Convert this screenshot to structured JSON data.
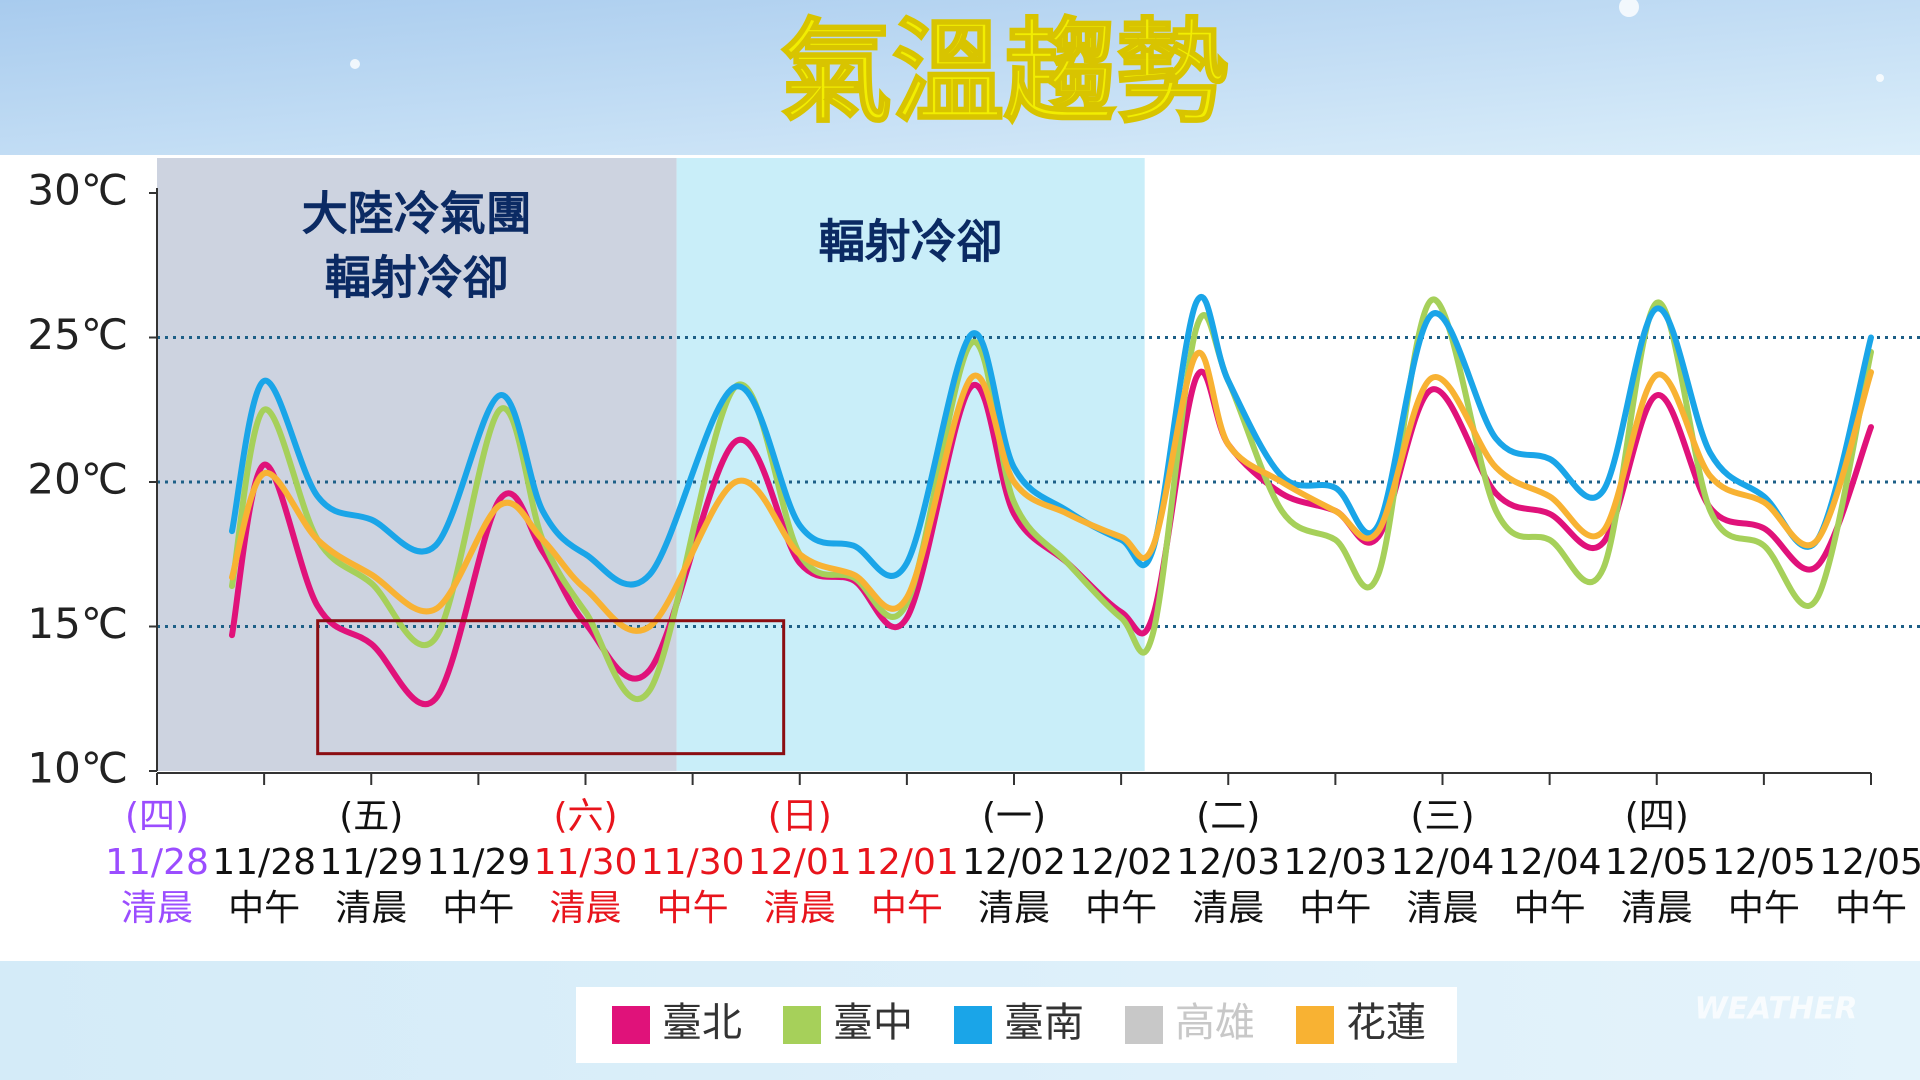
{
  "chart_data": {
    "type": "line",
    "title": "氣溫趨勢",
    "categories": [
      "11/28",
      "11/28",
      "11/29",
      "11/29",
      "11/30",
      "11/30",
      "12/01",
      "12/01",
      "12/02",
      "12/02",
      "12/03",
      "12/03",
      "12/04",
      "12/04",
      "12/05",
      "12/05",
      "12/05"
    ],
    "weekdays": [
      "(四)",
      null,
      "(五)",
      null,
      "(六)",
      null,
      "(日)",
      null,
      "(一)",
      null,
      "(二)",
      null,
      "(三)",
      null,
      "(四)",
      null,
      null
    ],
    "times": [
      "清晨",
      "中午",
      "清晨",
      "中午",
      "清晨",
      "中午",
      "清晨",
      "中午",
      "清晨",
      "中午",
      "清晨",
      "中午",
      "清晨",
      "中午",
      "清晨",
      "中午",
      "中午"
    ],
    "label_colors": [
      "#9b4dff",
      "#111111",
      "#111111",
      "#111111",
      "#e8141c",
      "#e8141c",
      "#e8141c",
      "#e8141c",
      "#111111",
      "#111111",
      "#111111",
      "#111111",
      "#111111",
      "#111111",
      "#111111",
      "#111111",
      "#111111"
    ],
    "xlim": [
      0,
      16
    ],
    "ylim": [
      10,
      30
    ],
    "yticks": [
      {
        "value": 10,
        "label": "10℃"
      },
      {
        "value": 15,
        "label": "15℃"
      },
      {
        "value": 20,
        "label": "20℃"
      },
      {
        "value": 25,
        "label": "25℃"
      },
      {
        "value": 30,
        "label": "30℃"
      }
    ],
    "grid": true,
    "x": [
      0.7,
      1,
      1.5,
      2,
      2.6,
      3.2,
      3.6,
      4,
      4.6,
      5.4,
      6,
      6.5,
      7,
      7.6,
      8,
      8.5,
      9,
      9.3,
      9.7,
      10,
      10.5,
      11,
      11.4,
      11.9,
      12.5,
      13,
      13.5,
      14,
      14.5,
      15,
      15.5,
      16
    ],
    "series": [
      {
        "name": "臺北",
        "color": "#e0127a",
        "values": [
          14.7,
          20.6,
          15.7,
          14.4,
          12.5,
          19.4,
          17.6,
          15.1,
          13.5,
          21.4,
          17.2,
          16.6,
          15.3,
          23.3,
          18.9,
          17.2,
          15.5,
          15.4,
          23.6,
          21.3,
          19.6,
          19.0,
          18.1,
          23.2,
          19.6,
          18.9,
          17.9,
          23.0,
          19.1,
          18.4,
          17.1,
          21.9
        ]
      },
      {
        "name": "臺中",
        "color": "#a6d05a",
        "values": [
          16.4,
          22.5,
          18.0,
          16.5,
          14.6,
          22.5,
          18.0,
          15.5,
          12.8,
          23.3,
          17.5,
          16.7,
          15.8,
          24.8,
          19.3,
          17.2,
          15.3,
          14.8,
          25.3,
          23.5,
          19.0,
          18.0,
          16.8,
          26.3,
          19.0,
          18.0,
          17.0,
          26.2,
          19.0,
          17.8,
          16.0,
          24.5
        ]
      },
      {
        "name": "臺南",
        "color": "#1aa5e8",
        "values": [
          18.3,
          23.5,
          19.5,
          18.7,
          17.8,
          23.0,
          19.0,
          17.5,
          16.8,
          23.3,
          18.5,
          17.8,
          17.2,
          25.1,
          20.5,
          19.0,
          18.0,
          17.7,
          26.2,
          23.5,
          20.2,
          19.8,
          18.5,
          25.8,
          21.5,
          20.8,
          19.7,
          26.0,
          21.0,
          19.5,
          18.0,
          25.0
        ]
      },
      {
        "name": "高雄",
        "color": "#c8c8c8",
        "hidden": true
      },
      {
        "name": "花蓮",
        "color": "#f8b233",
        "values": [
          16.7,
          20.3,
          18.0,
          16.8,
          15.6,
          19.2,
          18.0,
          16.3,
          15.0,
          20.0,
          17.5,
          16.8,
          16.0,
          23.6,
          20.0,
          18.9,
          18.1,
          17.8,
          24.4,
          21.3,
          20.0,
          19.0,
          18.3,
          23.6,
          20.5,
          19.5,
          18.3,
          23.7,
          20.2,
          19.3,
          18.0,
          23.8
        ]
      }
    ],
    "regions": [
      {
        "label": [
          "大陸冷氣團",
          "輻射冷卻"
        ],
        "xlim": [
          0,
          4.85
        ],
        "color": "#cdd3e0"
      },
      {
        "label": [
          "輻射冷卻"
        ],
        "xlim": [
          4.85,
          9.22
        ],
        "color": "#c9eef9"
      }
    ],
    "highlight_box": {
      "xlim": [
        1.5,
        5.85
      ],
      "ylim": [
        10.6,
        15.2
      ],
      "color": "#8b0d12"
    },
    "watermark": "WEATHER"
  }
}
